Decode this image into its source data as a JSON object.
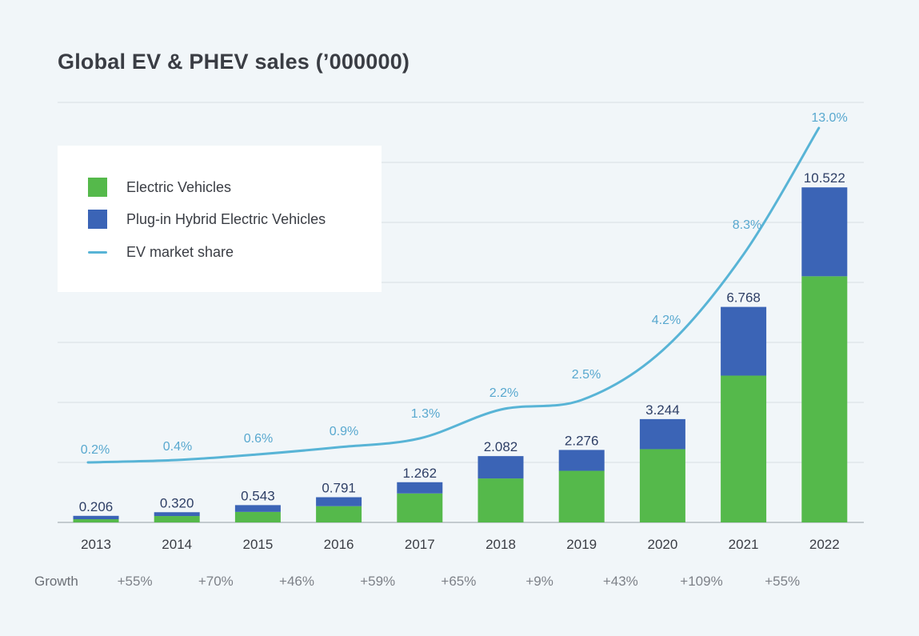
{
  "title": "Global EV & PHEV sales (’000000)",
  "colors": {
    "ev": "#55b94b",
    "phev": "#3b64b6",
    "share": "#58b4d6",
    "grid": "#d6dee3"
  },
  "legend": {
    "items": [
      {
        "label": "Electric Vehicles",
        "kind": "swatch",
        "color": "#55b94b"
      },
      {
        "label": "Plug-in Hybrid Electric Vehicles",
        "kind": "swatch",
        "color": "#3b64b6"
      },
      {
        "label": "EV market share",
        "kind": "line",
        "color": "#58b4d6"
      }
    ]
  },
  "growth": {
    "title": "Growth",
    "values": [
      "+55%",
      "+70%",
      "+46%",
      "+59%",
      "+65%",
      "+9%",
      "+43%",
      "+109%",
      "+55%"
    ]
  },
  "chart_data": {
    "type": "bar",
    "stacked": true,
    "title": "Global EV & PHEV sales (’000000)",
    "xlabel": "",
    "ylabel": "",
    "categories": [
      "2013",
      "2014",
      "2015",
      "2016",
      "2017",
      "2018",
      "2019",
      "2020",
      "2021",
      "2022"
    ],
    "ylim": [
      0,
      14
    ],
    "grid": true,
    "legend_position": "top-left",
    "series": [
      {
        "name": "Electric Vehicles",
        "values": [
          0.1,
          0.2,
          0.33,
          0.51,
          0.91,
          1.38,
          1.62,
          2.3,
          4.61,
          7.73
        ]
      },
      {
        "name": "Plug-in Hybrid Electric Vehicles",
        "values": [
          0.106,
          0.12,
          0.213,
          0.281,
          0.352,
          0.702,
          0.656,
          0.944,
          2.158,
          2.792
        ]
      }
    ],
    "totals": [
      0.206,
      0.32,
      0.543,
      0.791,
      1.262,
      2.082,
      2.276,
      3.244,
      6.768,
      10.522
    ],
    "total_labels": [
      "0.206",
      "0.320",
      "0.543",
      "0.791",
      "1.262",
      "2.082",
      "2.276",
      "3.244",
      "6.768",
      "10.522"
    ],
    "line_series": {
      "name": "EV market share",
      "values": [
        0.2,
        0.4,
        0.6,
        0.9,
        1.3,
        2.2,
        2.5,
        4.2,
        8.3,
        13.0
      ],
      "labels": [
        "0.2%",
        "0.4%",
        "0.6%",
        "0.9%",
        "1.3%",
        "2.2%",
        "2.5%",
        "4.2%",
        "8.3%",
        "13.0%"
      ]
    }
  }
}
